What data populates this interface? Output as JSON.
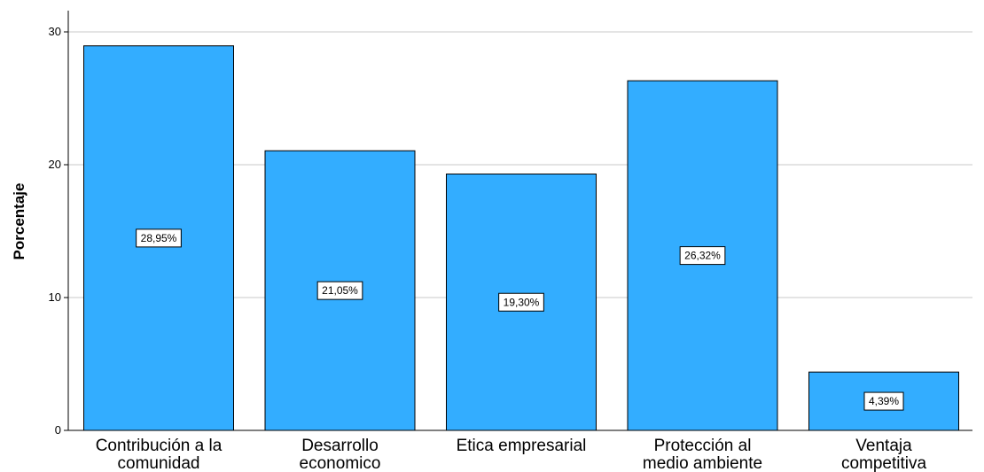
{
  "chart_data": {
    "type": "bar",
    "title": "",
    "xlabel": "",
    "ylabel": "Porcentaje",
    "ylim": [
      0,
      30
    ],
    "yticks": [
      "0",
      "10",
      "20",
      "30"
    ],
    "grid": true,
    "categories": [
      [
        "Contribución a la",
        "comunidad"
      ],
      [
        "Desarrollo",
        "economico"
      ],
      [
        "Etica empresarial"
      ],
      [
        "Protección al",
        "medio ambiente"
      ],
      [
        "Ventaja",
        "competitiva"
      ]
    ],
    "values": [
      28.95,
      21.05,
      19.3,
      26.32,
      4.39
    ],
    "data_labels": [
      "28,95%",
      "21,05%",
      "19,30%",
      "26,32%",
      "4,39%"
    ],
    "colors": {
      "bar": "#33adff",
      "bar_stroke": "#000000",
      "grid": "#c8c8c8"
    }
  }
}
